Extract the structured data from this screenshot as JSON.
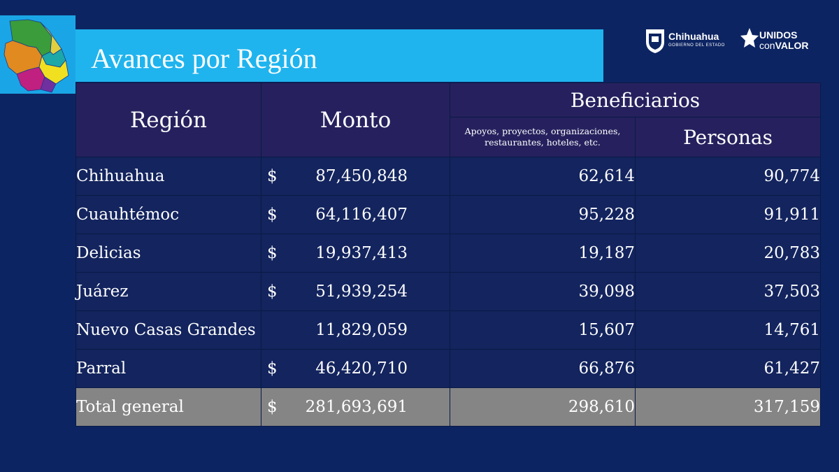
{
  "title": "Avances por Región",
  "logos": {
    "chihuahua_name": "Chihuahua",
    "chihuahua_sub": "GOBIERNO DEL ESTADO",
    "unidos_top": "UNIDOS",
    "unidos_con": "con",
    "unidos_valor": "VALOR"
  },
  "table": {
    "headers": {
      "region": "Región",
      "monto": "Monto",
      "beneficiarios": "Beneficiarios",
      "apoyos": "Apoyos, proyectos, organizaciones, restaurantes, hoteles,  etc.",
      "personas": "Personas"
    },
    "rows": [
      {
        "region": "Chihuahua",
        "currency": "$",
        "monto": "87,450,848",
        "apoyos": "62,614",
        "personas": "90,774"
      },
      {
        "region": "Cuauhtémoc",
        "currency": "$",
        "monto": "64,116,407",
        "apoyos": "95,228",
        "personas": "91,911"
      },
      {
        "region": "Delicias",
        "currency": "$",
        "monto": "19,937,413",
        "apoyos": "19,187",
        "personas": "20,783"
      },
      {
        "region": "Juárez",
        "currency": "$",
        "monto": "51,939,254",
        "apoyos": "39,098",
        "personas": "37,503"
      },
      {
        "region": "Nuevo Casas Grandes",
        "currency": "",
        "monto": "11,829,059",
        "apoyos": "15,607",
        "personas": "14,761"
      },
      {
        "region": "Parral",
        "currency": "$",
        "monto": "46,420,710",
        "apoyos": "66,876",
        "personas": "61,427"
      }
    ],
    "total": {
      "region": "Total general",
      "currency": "$",
      "monto": "281,693,691",
      "apoyos": "298,610",
      "personas": "317,159"
    }
  },
  "colors": {
    "background": "#0d2462",
    "title_bar": "#1fb4ee",
    "header": "#26215e",
    "row": "#13245e",
    "total_row": "#858585"
  }
}
